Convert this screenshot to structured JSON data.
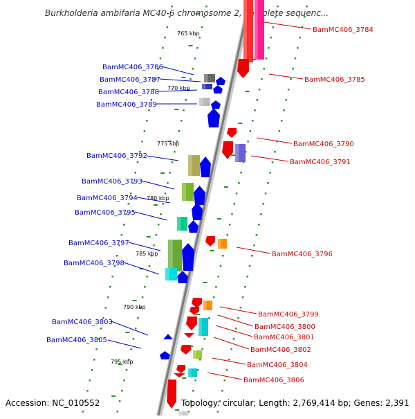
{
  "title": "Burkholderia ambifaria MC40-6 chromosome 2, complete sequenc...",
  "accession": "Accession: NC_010552",
  "topology": "Topology: circular; Length: 2,769,414 bp; Genes: 2,391",
  "colors": {
    "forward_label": "#0000cc",
    "reverse_label": "#cc0000",
    "axis": "#888888",
    "tick": "#2e8b2e"
  },
  "axis_ticks": [
    "765 kbp",
    "770 kbp",
    "775 kbp",
    "780 kbp",
    "785 kbp",
    "790 kbp",
    "795 kbp"
  ],
  "genes_left": [
    "BamMC406_3786",
    "BamMC406_3787",
    "BamMC406_3788",
    "BamMC406_3789",
    "BamMC406_3792",
    "BamMC406_3793",
    "BamMC406_3794",
    "BamMC406_3795",
    "BamMC406_3797",
    "BamMC406_3798",
    "BamMC406_3803",
    "BamMC406_3805"
  ],
  "genes_right": [
    "BamMC406_3784",
    "BamMC406_3785",
    "BamMC406_3790",
    "BamMC406_3791",
    "BamMC406_3796",
    "BamMC406_3799",
    "BamMC406_3800",
    "BamMC406_3801",
    "BamMC406_3802",
    "BamMC406_3804",
    "BamMC406_3806"
  ]
}
